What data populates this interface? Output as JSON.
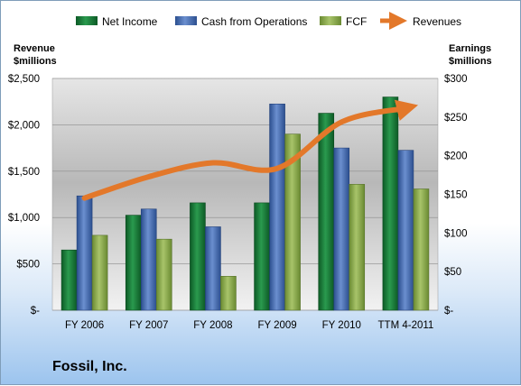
{
  "company_name": "Fossil, Inc.",
  "colors": {
    "net_income": "#1a7a3a",
    "cash_from_operations": "#4a6fb0",
    "fcf": "#8fad4e",
    "revenues": "#e3782a"
  },
  "chart_data": {
    "type": "bar",
    "categories": [
      "FY 2006",
      "FY 2007",
      "FY 2008",
      "FY 2009",
      "FY 2010",
      "TTM 4-2011"
    ],
    "series": [
      {
        "name": "Net Income",
        "axis": "right",
        "values": [
          78,
          123,
          139,
          139,
          255,
          276
        ]
      },
      {
        "name": "Cash from Operations",
        "axis": "right",
        "values": [
          148,
          131,
          108,
          267,
          210,
          207
        ]
      },
      {
        "name": "FCF",
        "axis": "right",
        "values": [
          97,
          92,
          44,
          228,
          163,
          157
        ]
      }
    ],
    "line_series": [
      {
        "name": "Revenues",
        "axis": "left",
        "values": [
          1210,
          1440,
          1590,
          1530,
          2030,
          2180
        ]
      }
    ],
    "left_axis": {
      "label_line1": "Revenue",
      "label_line2": "$millions",
      "ylim": [
        0,
        2500
      ],
      "ticks": [
        "$-",
        "$500",
        "$1,000",
        "$1,500",
        "$2,000",
        "$2,500"
      ]
    },
    "right_axis": {
      "label_line1": "Earnings",
      "label_line2": "$millions",
      "ylim": [
        0,
        300
      ],
      "ticks": [
        "$-",
        "$50",
        "$100",
        "$150",
        "$200",
        "$250",
        "$300"
      ]
    },
    "legend": {
      "placement": "top",
      "items": [
        "Net Income",
        "Cash from Operations",
        "FCF",
        "Revenues"
      ]
    },
    "grid": true
  }
}
